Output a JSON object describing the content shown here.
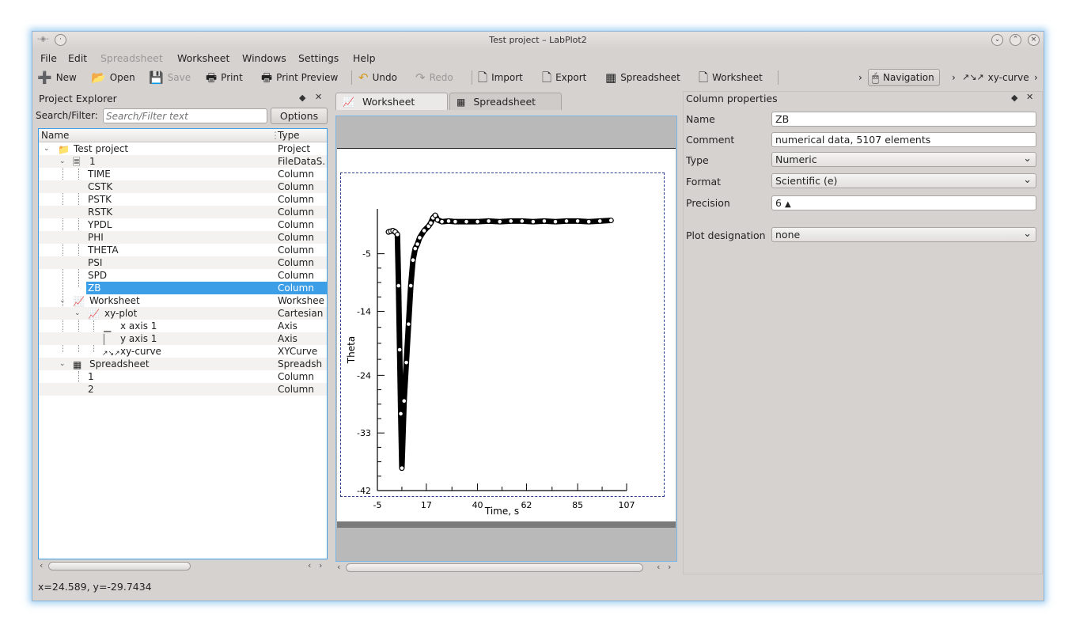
{
  "window": {
    "title": "Test project – LabPlot2"
  },
  "menu": [
    "File",
    "Edit",
    "Spreadsheet",
    "Worksheet",
    "Windows",
    "Settings",
    "Help"
  ],
  "toolbar": {
    "new": "New",
    "open": "Open",
    "save": "Save",
    "print": "Print",
    "print_preview": "Print Preview",
    "undo": "Undo",
    "redo": "Redo",
    "import": "Import",
    "export": "Export",
    "spreadsheet": "Spreadsheet",
    "worksheet": "Worksheet",
    "navigation": "Navigation",
    "xy_curve": "xy-curve"
  },
  "explorer": {
    "title": "Project Explorer",
    "search_label": "Search/Filter:",
    "search_placeholder": "Search/Filter text",
    "options_label": "Options",
    "col_name": "Name",
    "col_type": "Type",
    "rows": [
      {
        "name": "Test project",
        "type": "Project"
      },
      {
        "name": "1",
        "type": "FileDataS."
      },
      {
        "name": "TIME",
        "type": "Column"
      },
      {
        "name": "CSTK",
        "type": "Column"
      },
      {
        "name": "PSTK",
        "type": "Column"
      },
      {
        "name": "RSTK",
        "type": "Column"
      },
      {
        "name": "YPDL",
        "type": "Column"
      },
      {
        "name": "PHI",
        "type": "Column"
      },
      {
        "name": "THETA",
        "type": "Column"
      },
      {
        "name": "PSI",
        "type": "Column"
      },
      {
        "name": "SPD",
        "type": "Column"
      },
      {
        "name": "ZB",
        "type": "Column"
      },
      {
        "name": "Worksheet",
        "type": "Workshee"
      },
      {
        "name": "xy-plot",
        "type": "Cartesian"
      },
      {
        "name": "x axis 1",
        "type": "Axis"
      },
      {
        "name": "y axis 1",
        "type": "Axis"
      },
      {
        "name": "xy-curve",
        "type": "XYCurve"
      },
      {
        "name": "Spreadsheet",
        "type": "Spreadsh"
      },
      {
        "name": "1",
        "type": "Column"
      },
      {
        "name": "2",
        "type": "Column"
      }
    ]
  },
  "tabs": {
    "worksheet": "Worksheet",
    "spreadsheet": "Spreadsheet"
  },
  "chart_data": {
    "type": "scatter",
    "xlabel": "Time, s",
    "ylabel": "Theta",
    "xticks": [
      -5,
      17,
      40,
      62,
      85,
      107
    ],
    "yticks": [
      -5,
      -14,
      -24,
      -33,
      -42
    ],
    "xlim": [
      -5,
      107
    ],
    "ylim": [
      -42,
      2
    ],
    "series": [
      {
        "x": [
          0,
          1,
          2,
          3,
          4,
          4.5,
          5,
          5.5,
          6,
          7,
          8,
          9,
          10,
          11,
          12,
          13,
          14,
          16,
          18,
          19,
          20,
          21,
          22,
          24,
          27,
          30,
          35,
          40,
          45,
          50,
          55,
          60,
          65,
          70,
          75,
          80,
          85,
          90,
          95,
          100
        ],
        "y": [
          -1.6,
          -1.5,
          -1.4,
          -1.6,
          -2,
          -10,
          -20,
          -30,
          -38.5,
          -28,
          -22,
          -16,
          -10,
          -6,
          -4.2,
          -3.5,
          -2.5,
          -1.4,
          -0.7,
          -0.2,
          0.6,
          1,
          0.3,
          0,
          0.1,
          0,
          0,
          0,
          0.1,
          0,
          0.1,
          0.1,
          0,
          0.1,
          0,
          0.1,
          0.1,
          0,
          0.1,
          0.2
        ]
      }
    ]
  },
  "properties": {
    "title": "Column properties",
    "name_label": "Name",
    "name_value": "ZB",
    "comment_label": "Comment",
    "comment_value": "numerical data, 5107 elements",
    "type_label": "Type",
    "type_value": "Numeric",
    "format_label": "Format",
    "format_value": "Scientific (e)",
    "precision_label": "Precision",
    "precision_value": "6",
    "plot_label": "Plot designation",
    "plot_value": "none"
  },
  "status": "x=24.589, y=-29.7434"
}
